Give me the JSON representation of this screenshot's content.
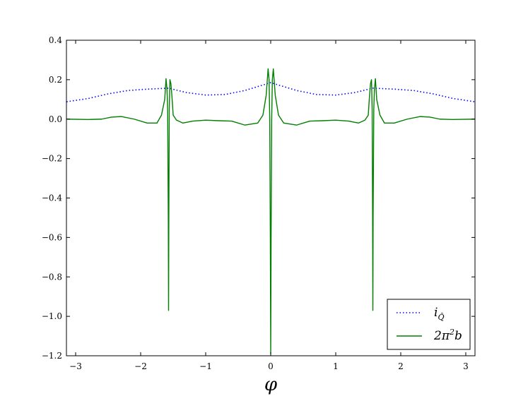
{
  "chart_data": {
    "type": "line",
    "xlabel": "φ",
    "ylabel": "",
    "title": "",
    "xlim": [
      -3.14159,
      3.14159
    ],
    "ylim": [
      -1.2,
      0.4
    ],
    "xticks": [
      "−3",
      "−2",
      "−1",
      "0",
      "1",
      "2",
      "3"
    ],
    "xtick_values": [
      -3,
      -2,
      -1,
      0,
      1,
      2,
      3
    ],
    "yticks": [
      "−1.2",
      "−1.0",
      "−0.8",
      "−0.6",
      "−0.4",
      "−0.2",
      "0.0",
      "0.2",
      "0.4"
    ],
    "ytick_values": [
      -1.2,
      -1.0,
      -0.8,
      -0.6,
      -0.4,
      -0.2,
      0.0,
      0.2,
      0.4
    ],
    "grid": false,
    "legend_position": "bottom-right",
    "series": [
      {
        "name": "i_Q̂",
        "label_main": "i",
        "label_sub": "Q̂",
        "color": "#0000ff",
        "style": "dotted",
        "x": [
          -3.14,
          -2.8,
          -2.5,
          -2.2,
          -1.9,
          -1.57,
          -1.3,
          -1.0,
          -0.7,
          -0.4,
          -0.2,
          0.0,
          0.2,
          0.4,
          0.7,
          1.0,
          1.3,
          1.57,
          1.9,
          2.2,
          2.5,
          2.8,
          3.14
        ],
        "y": [
          0.088,
          0.105,
          0.128,
          0.145,
          0.152,
          0.157,
          0.135,
          0.122,
          0.125,
          0.145,
          0.165,
          0.185,
          0.165,
          0.145,
          0.125,
          0.122,
          0.135,
          0.157,
          0.152,
          0.145,
          0.128,
          0.105,
          0.088
        ]
      },
      {
        "name": "2π²b",
        "label_main": "2π",
        "label_sup": "2",
        "label_tail": "b",
        "color": "#007f00",
        "style": "solid",
        "x": [
          -3.14,
          -2.8,
          -2.6,
          -2.45,
          -2.3,
          -2.1,
          -1.9,
          -1.75,
          -1.68,
          -1.63,
          -1.61,
          -1.595,
          -1.585,
          -1.575,
          -1.571,
          -1.567,
          -1.56,
          -1.55,
          -1.535,
          -1.52,
          -1.5,
          -1.45,
          -1.35,
          -1.2,
          -1.0,
          -0.8,
          -0.6,
          -0.4,
          -0.2,
          -0.12,
          -0.07,
          -0.04,
          -0.025,
          -0.015,
          -0.006,
          0.0,
          0.006,
          0.015,
          0.025,
          0.04,
          0.07,
          0.12,
          0.2,
          0.4,
          0.6,
          0.8,
          1.0,
          1.2,
          1.35,
          1.45,
          1.5,
          1.52,
          1.535,
          1.55,
          1.56,
          1.567,
          1.571,
          1.575,
          1.585,
          1.595,
          1.61,
          1.63,
          1.68,
          1.75,
          1.9,
          2.1,
          2.3,
          2.45,
          2.6,
          2.8,
          3.14
        ],
        "y": [
          0.0,
          -0.002,
          0.0,
          0.01,
          0.013,
          0.0,
          -0.02,
          -0.02,
          0.02,
          0.1,
          0.205,
          0.15,
          0.05,
          -0.5,
          -0.97,
          -0.5,
          0.05,
          0.2,
          0.18,
          0.12,
          0.02,
          -0.005,
          -0.02,
          -0.01,
          -0.005,
          -0.008,
          -0.01,
          -0.03,
          -0.02,
          0.02,
          0.12,
          0.255,
          0.2,
          0.0,
          -0.6,
          -1.19,
          -0.6,
          0.0,
          0.2,
          0.255,
          0.12,
          0.02,
          -0.02,
          -0.03,
          -0.01,
          -0.008,
          -0.005,
          -0.01,
          -0.02,
          -0.005,
          0.02,
          0.12,
          0.18,
          0.2,
          0.05,
          -0.5,
          -0.97,
          -0.5,
          0.05,
          0.15,
          0.205,
          0.1,
          0.02,
          -0.02,
          -0.02,
          0.0,
          0.013,
          0.01,
          0.0,
          -0.002,
          0.0
        ]
      }
    ]
  }
}
